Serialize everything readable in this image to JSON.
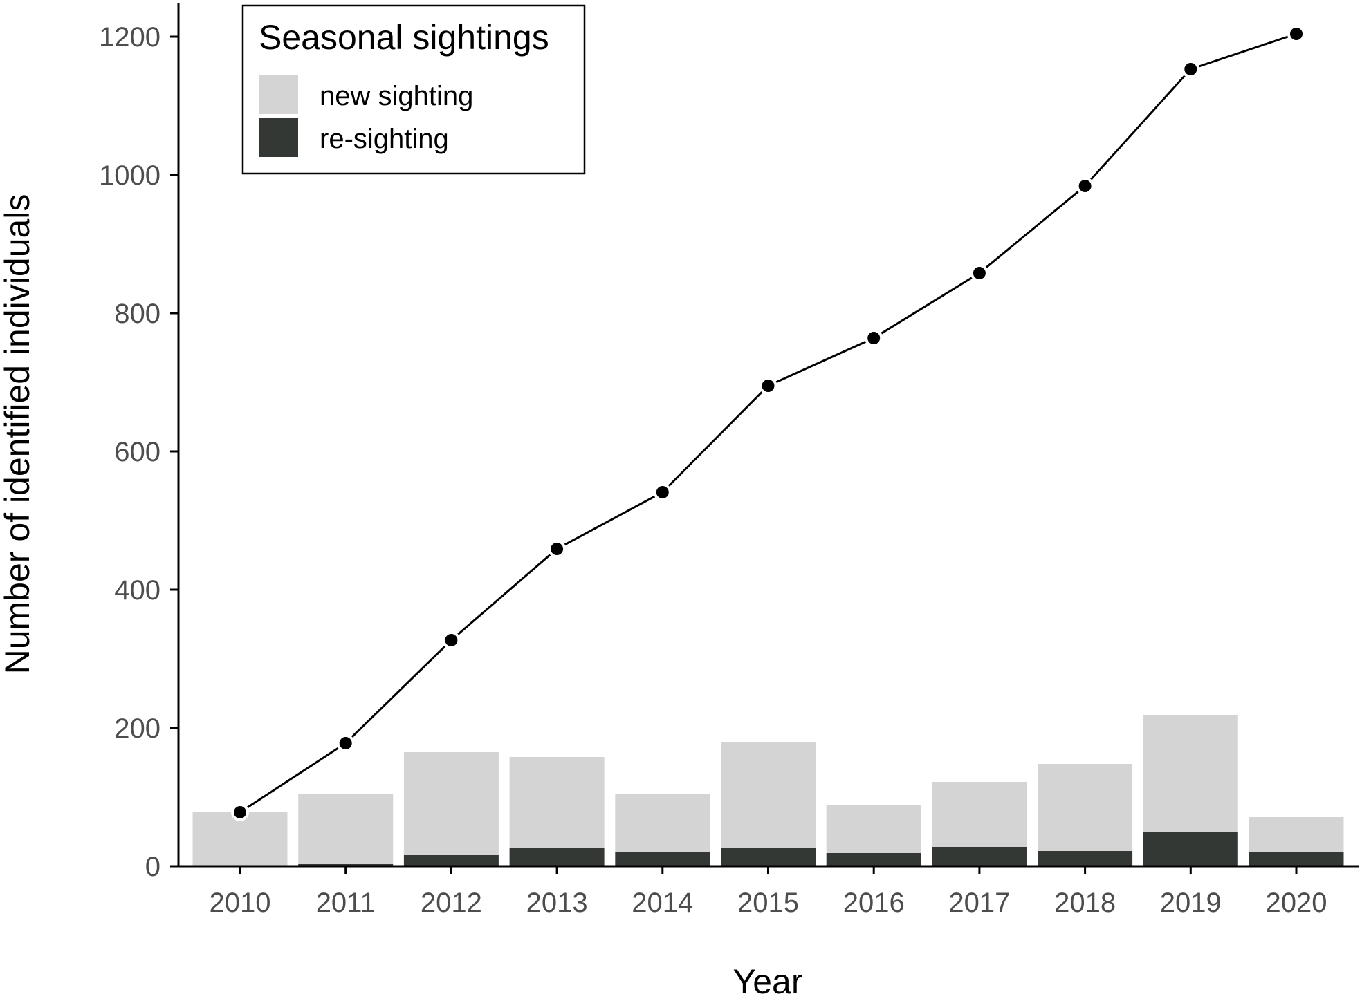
{
  "chart_data": {
    "type": "bar",
    "title": "",
    "xlabel": "Year",
    "ylabel": "Number of identified individuals",
    "categories": [
      "2010",
      "2011",
      "2012",
      "2013",
      "2014",
      "2015",
      "2016",
      "2017",
      "2018",
      "2019",
      "2020"
    ],
    "ylim": [
      0,
      1200
    ],
    "yticks": [
      "0",
      "200",
      "400",
      "600",
      "800",
      "1000",
      "1200"
    ],
    "stacked": true,
    "series": [
      {
        "name": "re-sighting",
        "type": "bar",
        "color": "#333835",
        "values": [
          0,
          3,
          16,
          27,
          20,
          26,
          19,
          28,
          22,
          49,
          20
        ]
      },
      {
        "name": "new sighting",
        "type": "bar",
        "color": "#d4d4d4",
        "values": [
          78,
          101,
          149,
          131,
          84,
          154,
          69,
          94,
          126,
          169,
          51
        ]
      },
      {
        "type": "line",
        "color": "#000000",
        "values": [
          78,
          178,
          327,
          459,
          541,
          695,
          764,
          858,
          984,
          1153,
          1204
        ]
      }
    ],
    "legend": {
      "title": "Seasonal sightings",
      "position": "top-left",
      "entries": [
        "new sighting",
        "re-sighting"
      ]
    },
    "grid": false
  }
}
